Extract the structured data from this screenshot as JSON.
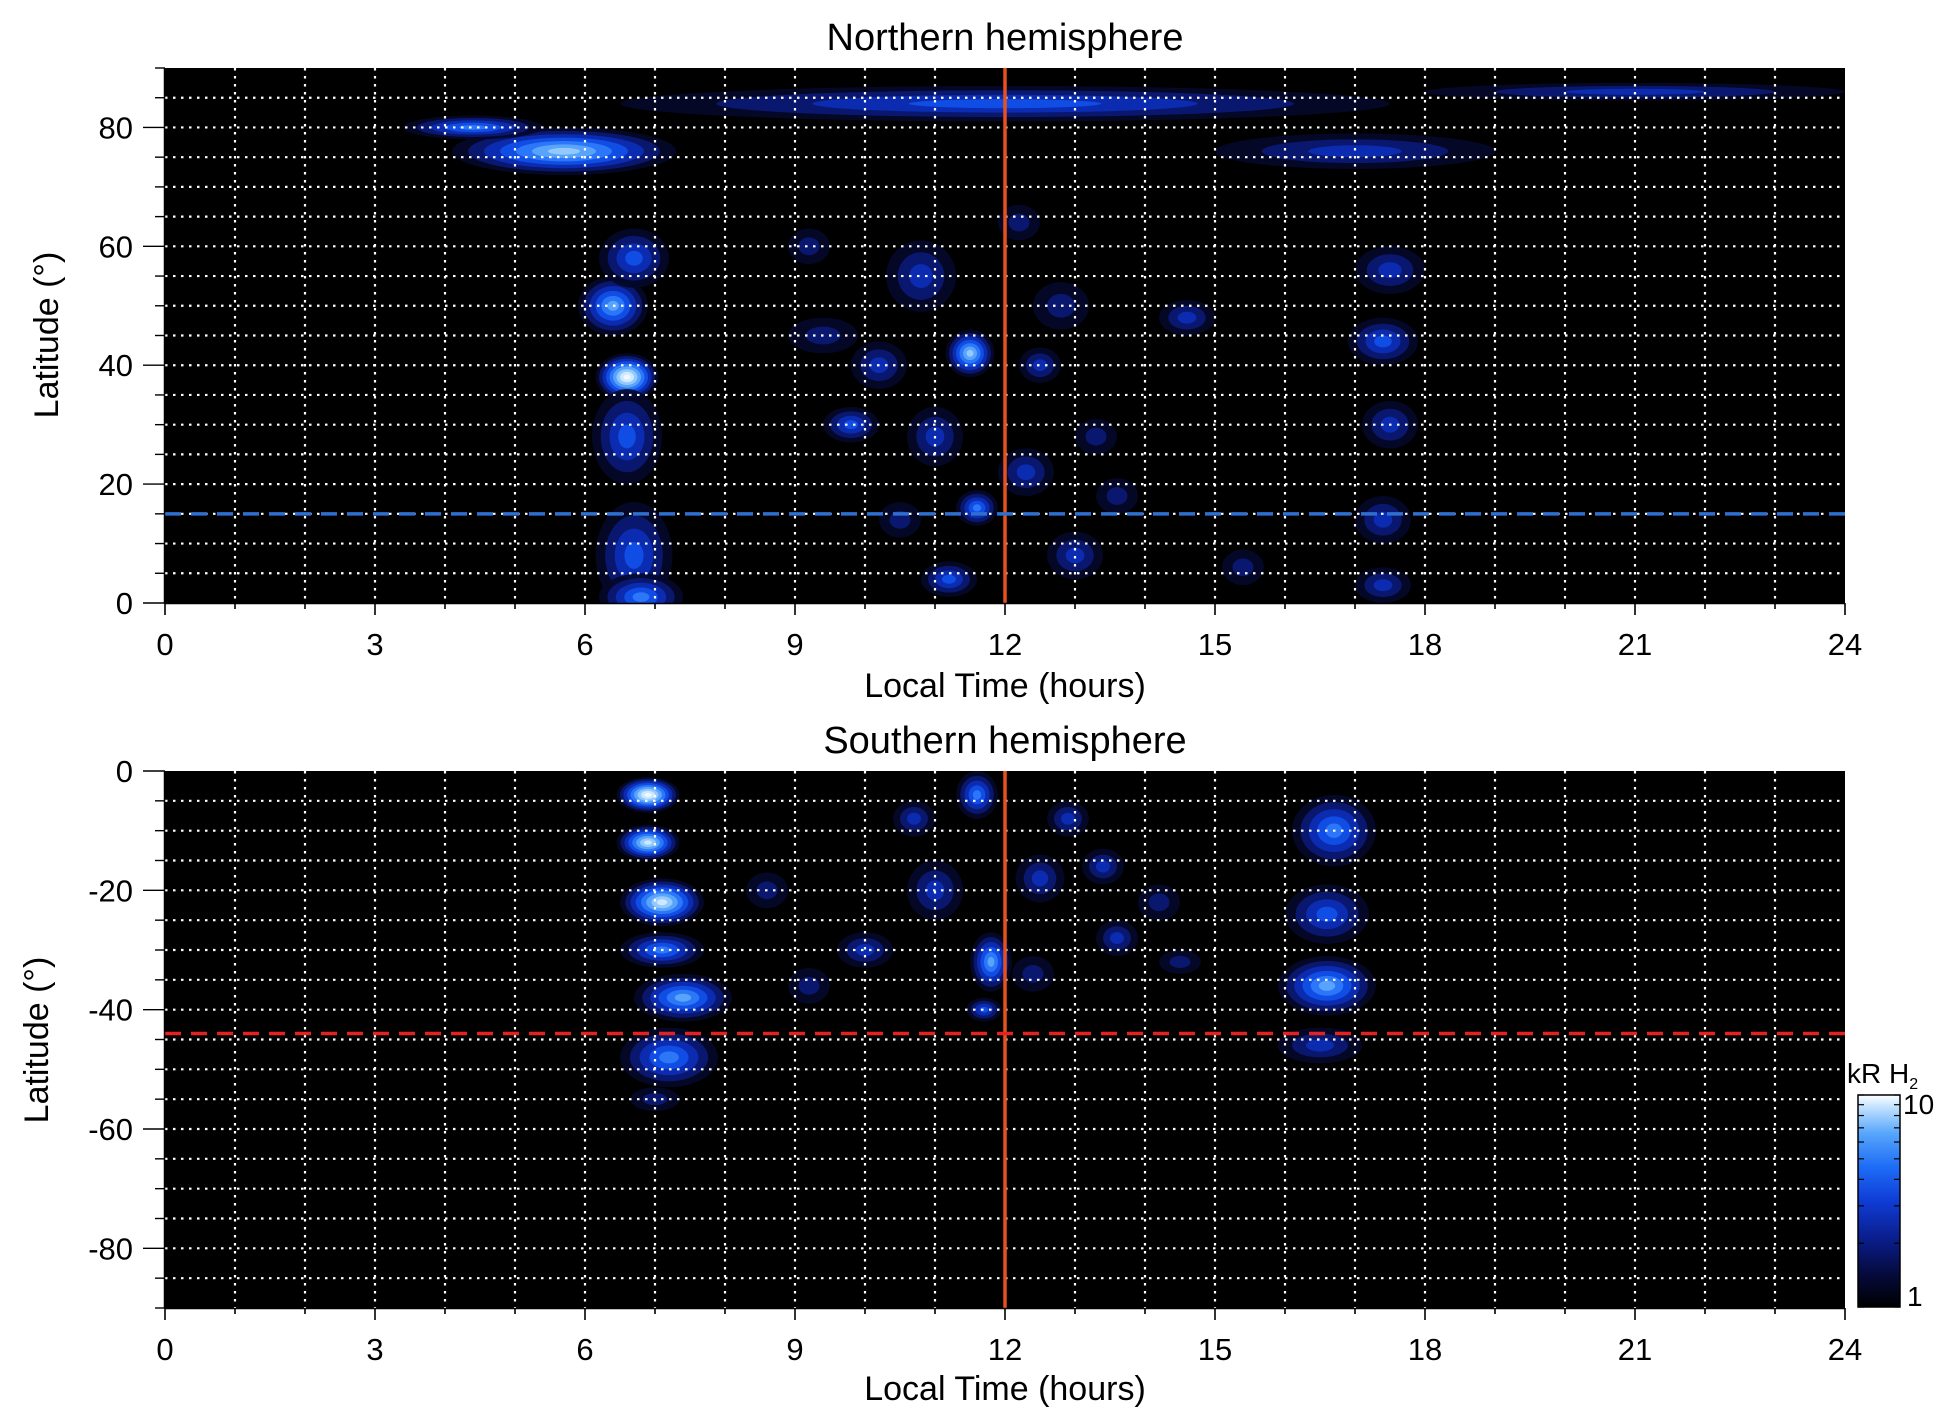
{
  "chart_data": [
    {
      "type": "heatmap",
      "title": "Northern hemisphere",
      "xlabel": "Local Time (hours)",
      "ylabel": "Latitude (°)",
      "xlim": [
        0,
        24
      ],
      "ylim": [
        0,
        90
      ],
      "x_ticks": [
        0,
        3,
        6,
        9,
        12,
        15,
        18,
        21,
        24
      ],
      "y_ticks": [
        0,
        20,
        40,
        60,
        80
      ],
      "grid": true,
      "reference_lines": [
        {
          "orientation": "vertical",
          "x": 12,
          "color": "#e8501e",
          "style": "solid"
        },
        {
          "orientation": "horizontal",
          "y": 15,
          "color": "#2f6fd0",
          "style": "dashed"
        }
      ],
      "blobs": [
        {
          "x": 6.6,
          "y": 38,
          "rx": 0.45,
          "ry": 4,
          "v": 9
        },
        {
          "x": 6.4,
          "y": 50,
          "rx": 0.5,
          "ry": 5,
          "v": 6
        },
        {
          "x": 6.6,
          "y": 28,
          "rx": 0.5,
          "ry": 8,
          "v": 4
        },
        {
          "x": 6.7,
          "y": 8,
          "rx": 0.55,
          "ry": 9,
          "v": 4
        },
        {
          "x": 6.8,
          "y": 1,
          "rx": 0.6,
          "ry": 4,
          "v": 5
        },
        {
          "x": 6.7,
          "y": 58,
          "rx": 0.5,
          "ry": 5,
          "v": 4
        },
        {
          "x": 5.7,
          "y": 76,
          "rx": 1.6,
          "ry": 4,
          "v": 7
        },
        {
          "x": 4.4,
          "y": 80,
          "rx": 1.0,
          "ry": 2,
          "v": 5
        },
        {
          "x": 12.0,
          "y": 84,
          "rx": 5.5,
          "ry": 3,
          "v": 4
        },
        {
          "x": 17.0,
          "y": 76,
          "rx": 2.0,
          "ry": 3,
          "v": 3
        },
        {
          "x": 21.0,
          "y": 86,
          "rx": 3.0,
          "ry": 1.5,
          "v": 3
        },
        {
          "x": 17.5,
          "y": 56,
          "rx": 0.5,
          "ry": 4,
          "v": 3
        },
        {
          "x": 17.4,
          "y": 44,
          "rx": 0.5,
          "ry": 4,
          "v": 4
        },
        {
          "x": 17.5,
          "y": 30,
          "rx": 0.4,
          "ry": 4,
          "v": 3
        },
        {
          "x": 17.4,
          "y": 14,
          "rx": 0.4,
          "ry": 4,
          "v": 3
        },
        {
          "x": 17.4,
          "y": 3,
          "rx": 0.4,
          "ry": 3,
          "v": 3
        },
        {
          "x": 11.5,
          "y": 42,
          "rx": 0.35,
          "ry": 4,
          "v": 7
        },
        {
          "x": 10.2,
          "y": 40,
          "rx": 0.4,
          "ry": 4,
          "v": 3
        },
        {
          "x": 10.8,
          "y": 55,
          "rx": 0.5,
          "ry": 6,
          "v": 3
        },
        {
          "x": 11.0,
          "y": 28,
          "rx": 0.4,
          "ry": 5,
          "v": 3
        },
        {
          "x": 12.3,
          "y": 22,
          "rx": 0.4,
          "ry": 4,
          "v": 3
        },
        {
          "x": 11.6,
          "y": 16,
          "rx": 0.3,
          "ry": 3,
          "v": 5
        },
        {
          "x": 11.2,
          "y": 4,
          "rx": 0.4,
          "ry": 3,
          "v": 4
        },
        {
          "x": 13.0,
          "y": 8,
          "rx": 0.4,
          "ry": 4,
          "v": 3
        },
        {
          "x": 9.8,
          "y": 30,
          "rx": 0.4,
          "ry": 3,
          "v": 4
        },
        {
          "x": 9.4,
          "y": 45,
          "rx": 0.5,
          "ry": 3,
          "v": 2
        },
        {
          "x": 12.8,
          "y": 50,
          "rx": 0.4,
          "ry": 4,
          "v": 2
        },
        {
          "x": 12.5,
          "y": 40,
          "rx": 0.3,
          "ry": 3,
          "v": 3
        },
        {
          "x": 13.6,
          "y": 18,
          "rx": 0.3,
          "ry": 3,
          "v": 2
        },
        {
          "x": 14.6,
          "y": 48,
          "rx": 0.4,
          "ry": 3,
          "v": 3
        },
        {
          "x": 10.5,
          "y": 14,
          "rx": 0.3,
          "ry": 3,
          "v": 2
        },
        {
          "x": 13.3,
          "y": 28,
          "rx": 0.3,
          "ry": 3,
          "v": 2
        },
        {
          "x": 9.2,
          "y": 60,
          "rx": 0.3,
          "ry": 3,
          "v": 2
        },
        {
          "x": 12.2,
          "y": 64,
          "rx": 0.3,
          "ry": 3,
          "v": 2
        },
        {
          "x": 15.4,
          "y": 6,
          "rx": 0.3,
          "ry": 3,
          "v": 2
        }
      ]
    },
    {
      "type": "heatmap",
      "title": "Southern hemisphere",
      "xlabel": "Local Time (hours)",
      "ylabel": "Latitude (°)",
      "xlim": [
        0,
        24
      ],
      "ylim": [
        -90,
        0
      ],
      "x_ticks": [
        0,
        3,
        6,
        9,
        12,
        15,
        18,
        21,
        24
      ],
      "y_ticks": [
        -80,
        -60,
        -40,
        -20,
        0
      ],
      "grid": true,
      "reference_lines": [
        {
          "orientation": "vertical",
          "x": 12,
          "color": "#e8501e",
          "style": "solid"
        },
        {
          "orientation": "horizontal",
          "y": -44,
          "color": "#e32222",
          "style": "dashed"
        }
      ],
      "blobs": [
        {
          "x": 6.9,
          "y": -4,
          "rx": 0.45,
          "ry": 3,
          "v": 9
        },
        {
          "x": 6.9,
          "y": -12,
          "rx": 0.45,
          "ry": 3,
          "v": 8
        },
        {
          "x": 7.1,
          "y": -22,
          "rx": 0.6,
          "ry": 4,
          "v": 8
        },
        {
          "x": 7.1,
          "y": -30,
          "rx": 0.6,
          "ry": 3,
          "v": 5
        },
        {
          "x": 7.4,
          "y": -38,
          "rx": 0.7,
          "ry": 4,
          "v": 6
        },
        {
          "x": 7.2,
          "y": -48,
          "rx": 0.7,
          "ry": 5,
          "v": 5
        },
        {
          "x": 7.0,
          "y": -55,
          "rx": 0.35,
          "ry": 2,
          "v": 2
        },
        {
          "x": 16.7,
          "y": -10,
          "rx": 0.6,
          "ry": 6,
          "v": 5
        },
        {
          "x": 16.6,
          "y": -24,
          "rx": 0.6,
          "ry": 5,
          "v": 4
        },
        {
          "x": 16.6,
          "y": -36,
          "rx": 0.7,
          "ry": 5,
          "v": 6
        },
        {
          "x": 16.5,
          "y": -46,
          "rx": 0.6,
          "ry": 3,
          "v": 3
        },
        {
          "x": 11.6,
          "y": -4,
          "rx": 0.3,
          "ry": 4,
          "v": 5
        },
        {
          "x": 11.8,
          "y": -32,
          "rx": 0.3,
          "ry": 5,
          "v": 6
        },
        {
          "x": 11.7,
          "y": -40,
          "rx": 0.25,
          "ry": 2,
          "v": 4
        },
        {
          "x": 11.0,
          "y": -20,
          "rx": 0.4,
          "ry": 5,
          "v": 3
        },
        {
          "x": 12.5,
          "y": -18,
          "rx": 0.35,
          "ry": 4,
          "v": 3
        },
        {
          "x": 13.4,
          "y": -16,
          "rx": 0.3,
          "ry": 3,
          "v": 3
        },
        {
          "x": 13.6,
          "y": -28,
          "rx": 0.3,
          "ry": 3,
          "v": 3
        },
        {
          "x": 10.0,
          "y": -30,
          "rx": 0.4,
          "ry": 3,
          "v": 3
        },
        {
          "x": 9.2,
          "y": -36,
          "rx": 0.3,
          "ry": 3,
          "v": 2
        },
        {
          "x": 14.2,
          "y": -22,
          "rx": 0.3,
          "ry": 3,
          "v": 2
        },
        {
          "x": 12.9,
          "y": -8,
          "rx": 0.3,
          "ry": 3,
          "v": 3
        },
        {
          "x": 10.7,
          "y": -8,
          "rx": 0.3,
          "ry": 3,
          "v": 3
        },
        {
          "x": 14.5,
          "y": -32,
          "rx": 0.3,
          "ry": 2,
          "v": 2
        },
        {
          "x": 12.4,
          "y": -34,
          "rx": 0.3,
          "ry": 3,
          "v": 2
        },
        {
          "x": 8.6,
          "y": -20,
          "rx": 0.3,
          "ry": 3,
          "v": 2
        }
      ]
    }
  ],
  "colorbar": {
    "label": "kR H",
    "label_subscript": "2",
    "min": 1,
    "max": 10,
    "max_label": "10",
    "min_label": "1",
    "scale": "log",
    "colors": [
      "#000000",
      "#050a3a",
      "#0a1d8a",
      "#0f3cd6",
      "#1e6cf6",
      "#58a6fb",
      "#bfe0ff",
      "#ffffff"
    ]
  }
}
